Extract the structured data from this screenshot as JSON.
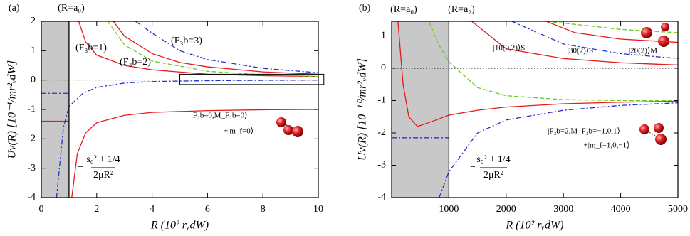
{
  "chart_data": [
    {
      "type": "line",
      "panel_label": "(a)",
      "x_label": "R (10² rᵥdW)",
      "y_label": "Uν(R) [10⁻⁴/mr²ᵥdW]",
      "xlim": [
        0,
        10
      ],
      "ylim": [
        -4,
        2
      ],
      "xticks": [
        0,
        2,
        4,
        6,
        8,
        10
      ],
      "yticks": [
        -4,
        -3,
        -2,
        -1,
        0,
        1,
        2
      ],
      "shaded_region": [
        0,
        1
      ],
      "boundary_x": 1,
      "zero_line": 0,
      "inset_box": [
        5,
        10.2,
        -0.15,
        0.2
      ],
      "annotations": [
        "(R=a₀)",
        "(F₃b=1)",
        "(F₃b=2)",
        "(F₃b=3)",
        "|F₂b=0,M_F₂b=0⟩",
        "+|m_f=0⟩",
        "−",
        "s₀² + 1/4",
        "2μR²"
      ],
      "series": [
        {
          "color": "#e41a1c",
          "dash": "solid",
          "x": [
            1.35,
            1.6,
            2,
            3,
            4,
            6,
            8,
            10
          ],
          "values": [
            2,
            1.3,
            0.85,
            0.5,
            0.35,
            0.2,
            0.15,
            0.12
          ]
        },
        {
          "color": "#e41a1c",
          "dash": "solid",
          "x": [
            2.6,
            3,
            4,
            5,
            6,
            8,
            10
          ],
          "values": [
            2,
            1.5,
            0.9,
            0.6,
            0.45,
            0.28,
            0.2
          ]
        },
        {
          "color": "#e41a1c",
          "dash": "solid",
          "x": [
            1.1,
            1.3,
            1.6,
            2,
            3,
            4,
            6,
            8,
            10
          ],
          "values": [
            -4,
            -2.5,
            -1.8,
            -1.45,
            -1.2,
            -1.1,
            -1.04,
            -1.01,
            -1
          ]
        },
        {
          "color": "#e41a1c",
          "dash": "solid",
          "x": [
            0,
            1
          ],
          "values": [
            -1.4,
            -1.4
          ]
        },
        {
          "color": "#66cc22",
          "dash": "dashed",
          "x": [
            2.4,
            3,
            4,
            6,
            8,
            10
          ],
          "values": [
            2,
            1.2,
            0.65,
            0.3,
            0.18,
            0.12
          ]
        },
        {
          "color": "#2233cc",
          "dash": "dashdot",
          "x": [
            3.4,
            4,
            5,
            6,
            8,
            10
          ],
          "values": [
            2,
            1.6,
            1,
            0.7,
            0.4,
            0.25
          ]
        },
        {
          "color": "#2233cc",
          "dash": "dashdot",
          "x": [
            0.55,
            0.8,
            1,
            1.5,
            2,
            3,
            4,
            6,
            10
          ],
          "values": [
            -4,
            -1.6,
            -0.9,
            -0.45,
            -0.25,
            -0.1,
            -0.05,
            -0.02,
            0
          ]
        },
        {
          "color": "#2233cc",
          "dash": "dashdot",
          "x": [
            0,
            1
          ],
          "values": [
            -0.45,
            -0.45
          ]
        }
      ]
    },
    {
      "type": "line",
      "panel_label": "(b)",
      "x_label": "R (10² rᵥdW)",
      "y_label": "Uν(R) [10⁻¹⁰/mr²ᵥdW]",
      "xlim": [
        0,
        5000
      ],
      "ylim": [
        -4,
        1.45
      ],
      "xticks": [
        1000,
        2000,
        3000,
        4000,
        5000
      ],
      "yticks": [
        -4,
        -3,
        -2,
        -1,
        0,
        1
      ],
      "shaded_region": [
        0,
        1000
      ],
      "boundary_x": 1000,
      "zero_line": 0,
      "annotations": [
        "(R=a₀)",
        "(R=a₂)",
        "|10(0,2)⟩S",
        "|30(2)⟩S",
        "|20(2)⟩M",
        "|F₂b=2,M_F₂b=−1,0,1⟩",
        "+|m_f=1,0,−1⟩",
        "−",
        "s₀² + 1/4",
        "2μR²"
      ],
      "series": [
        {
          "color": "#e41a1c",
          "dash": "solid",
          "x": [
            110,
            200,
            300,
            450,
            700,
            1000,
            1500,
            2000,
            3000,
            4000,
            5000
          ],
          "values": [
            1.45,
            -0.5,
            -1.5,
            -1.8,
            -1.65,
            -1.45,
            -1.3,
            -1.2,
            -1.1,
            -1.05,
            -1.02
          ]
        },
        {
          "color": "#e41a1c",
          "dash": "solid",
          "x": [
            1400,
            2000,
            3000,
            4000,
            5000
          ],
          "values": [
            1.45,
            0.6,
            0.3,
            0.17,
            0.1
          ]
        },
        {
          "color": "#e41a1c",
          "dash": "solid",
          "x": [
            2700,
            3200,
            4000,
            5000
          ],
          "values": [
            1.45,
            1.1,
            0.9,
            0.8
          ]
        },
        {
          "color": "#66cc22",
          "dash": "dashed",
          "x": [
            650,
            800,
            1000,
            1500,
            2000,
            3000,
            4000,
            5000
          ],
          "values": [
            1.45,
            0.8,
            0.2,
            -0.6,
            -0.85,
            -0.97,
            -1,
            -1
          ]
        },
        {
          "color": "#66cc22",
          "dash": "dashed",
          "x": [
            2700,
            3500,
            4000,
            5000
          ],
          "values": [
            1.45,
            1.3,
            1.2,
            1.1
          ]
        },
        {
          "color": "#2233cc",
          "dash": "dashdot",
          "x": [
            2100,
            3000,
            4000,
            5000
          ],
          "values": [
            1.45,
            0.75,
            0.45,
            0.3
          ]
        },
        {
          "color": "#2233cc",
          "dash": "dashdot",
          "x": [
            830,
            1000,
            1500,
            2000,
            3000,
            4000,
            5000
          ],
          "values": [
            -4,
            -3.2,
            -2,
            -1.6,
            -1.3,
            -1.15,
            -1.07
          ]
        },
        {
          "color": "#2233cc",
          "dash": "dashdot",
          "x": [
            0,
            1000
          ],
          "values": [
            -2.15,
            -2.15
          ]
        }
      ]
    }
  ]
}
